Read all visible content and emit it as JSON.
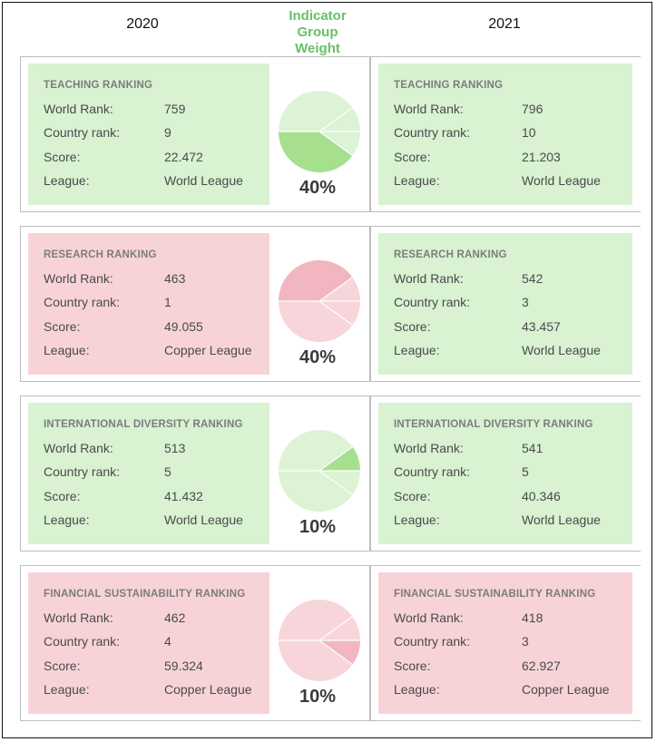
{
  "header": {
    "year_left": "2020",
    "year_right": "2021",
    "indicator_lines": [
      "Indicator",
      "Group",
      "Weight"
    ]
  },
  "labels": {
    "world_rank": "World Rank:",
    "country_rank": "Country rank:",
    "score": "Score:",
    "league": "League:"
  },
  "colors": {
    "green_card": "#d8f2d2",
    "red_card": "#f7d3d8",
    "green_pie_base": "#dcf3d5",
    "green_pie_accent": "#a6e08f",
    "red_pie_base": "#f8d5da",
    "red_pie_accent": "#f1b6bf",
    "indicator_text": "#66c266"
  },
  "sections": [
    {
      "title": "TEACHING RANKING",
      "weight": "40%",
      "pie_theme": "green",
      "y2020": {
        "theme": "green",
        "world_rank": "759",
        "country_rank": "9",
        "score": "22.472",
        "league": "World League"
      },
      "y2021": {
        "theme": "green",
        "world_rank": "796",
        "country_rank": "10",
        "score": "21.203",
        "league": "World League"
      }
    },
    {
      "title": "RESEARCH RANKING",
      "weight": "40%",
      "pie_theme": "red",
      "y2020": {
        "theme": "red",
        "world_rank": "463",
        "country_rank": "1",
        "score": "49.055",
        "league": "Copper League"
      },
      "y2021": {
        "theme": "green",
        "world_rank": "542",
        "country_rank": "3",
        "score": "43.457",
        "league": "World League"
      }
    },
    {
      "title": "INTERNATIONAL DIVERSITY RANKING",
      "weight": "10%",
      "pie_theme": "green",
      "y2020": {
        "theme": "green",
        "world_rank": "513",
        "country_rank": "5",
        "score": "41.432",
        "league": "World League"
      },
      "y2021": {
        "theme": "green",
        "world_rank": "541",
        "country_rank": "5",
        "score": "40.346",
        "league": "World League"
      }
    },
    {
      "title": "FINANCIAL SUSTAINABILITY RANKING",
      "weight": "10%",
      "pie_theme": "red",
      "y2020": {
        "theme": "red",
        "world_rank": "462",
        "country_rank": "4",
        "score": "59.324",
        "league": "Copper League"
      },
      "y2021": {
        "theme": "red",
        "world_rank": "418",
        "country_rank": "3",
        "score": "62.927",
        "league": "Copper League"
      }
    }
  ]
}
